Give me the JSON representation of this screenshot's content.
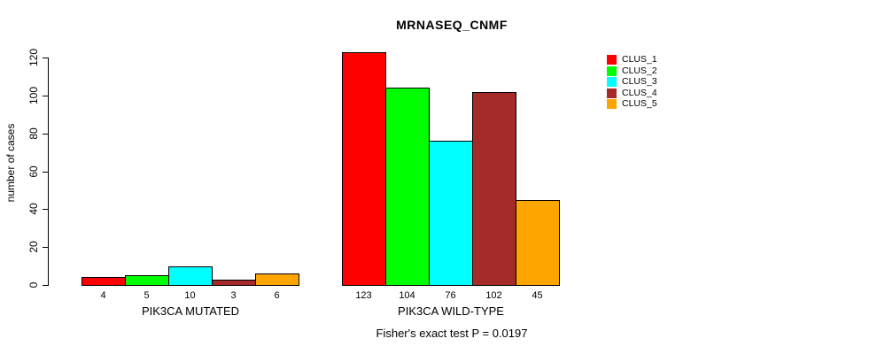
{
  "title": "MRNASEQ_CNMF",
  "subtitle": "Fisher's exact test P = 0.0197",
  "chart_data": {
    "type": "bar",
    "title": "MRNASEQ_CNMF",
    "xlabel": "",
    "ylabel": "number of cases",
    "ylim": [
      0,
      120
    ],
    "yticks": [
      0,
      20,
      40,
      60,
      80,
      100,
      120
    ],
    "grid": false,
    "legend_position": "top-right",
    "annotation": "Fisher's exact test P = 0.0197",
    "clusters": [
      "CLUS_1",
      "CLUS_2",
      "CLUS_3",
      "CLUS_4",
      "CLUS_5"
    ],
    "colors": [
      "#FF0000",
      "#00FF00",
      "#00FFFF",
      "#A52A2A",
      "#FFA500"
    ],
    "groups": [
      {
        "label": "PIK3CA MUTATED",
        "categories": [
          "CLUS_1",
          "CLUS_2",
          "CLUS_3",
          "CLUS_4",
          "CLUS_5"
        ],
        "values": [
          4,
          5,
          10,
          3,
          6
        ]
      },
      {
        "label": "PIK3CA WILD-TYPE",
        "categories": [
          "CLUS_1",
          "CLUS_2",
          "CLUS_3",
          "CLUS_4",
          "CLUS_5"
        ],
        "values": [
          123,
          104,
          76,
          102,
          45
        ]
      }
    ],
    "legend": [
      {
        "label": "CLUS_1",
        "color": "#FF0000"
      },
      {
        "label": "CLUS_2",
        "color": "#00FF00"
      },
      {
        "label": "CLUS_3",
        "color": "#00FFFF"
      },
      {
        "label": "CLUS_4",
        "color": "#A52A2A"
      },
      {
        "label": "CLUS_5",
        "color": "#FFA500"
      }
    ]
  }
}
